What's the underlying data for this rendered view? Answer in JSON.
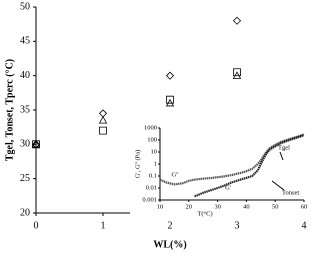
{
  "chart_data": [
    {
      "type": "scatter",
      "x_label": "WL(%)",
      "y_label": "Tgel, Tonset, Tperc (°C)",
      "x": [
        0,
        1,
        2,
        3
      ],
      "series": [
        {
          "name": "Tgel",
          "marker": "diamond",
          "color": "#000000",
          "values": [
            30,
            34.5,
            40,
            48
          ]
        },
        {
          "name": "Tonset",
          "marker": "triangle",
          "color": "#000000",
          "values": [
            30,
            33.5,
            36,
            40
          ]
        },
        {
          "name": "Tperc",
          "marker": "square",
          "color": "#000000",
          "values": [
            30,
            32,
            36.5,
            40.5
          ]
        }
      ],
      "xlim": [
        0,
        4
      ],
      "xticks": [
        0,
        1,
        2,
        3,
        4
      ],
      "ylim": [
        20,
        50
      ],
      "yticks": [
        20,
        25,
        30,
        35,
        40,
        45,
        50
      ]
    },
    {
      "type": "line",
      "x_label": "T(°C)",
      "y_label": "G', G'' (Pa)",
      "log_y": true,
      "x": [
        10,
        12,
        15,
        18,
        20,
        22,
        25,
        28,
        30,
        32,
        35,
        38,
        40,
        42,
        44,
        45,
        46,
        47,
        48,
        50,
        52,
        55,
        58,
        60
      ],
      "series": [
        {
          "name": "G''",
          "color": "#555555",
          "values": [
            0.05,
            0.03,
            0.02,
            0.025,
            0.04,
            0.05,
            0.06,
            0.07,
            0.08,
            0.09,
            0.12,
            0.18,
            0.25,
            0.4,
            1,
            2,
            5,
            10,
            20,
            40,
            70,
            120,
            200,
            300
          ]
        },
        {
          "name": "G'",
          "color": "#222222",
          "values": [
            null,
            null,
            null,
            null,
            null,
            0.002,
            0.004,
            0.007,
            0.01,
            0.015,
            0.03,
            0.05,
            0.07,
            0.1,
            0.3,
            1,
            3,
            8,
            15,
            30,
            55,
            100,
            170,
            250
          ]
        }
      ],
      "annotations": [
        "Tgel",
        "Tonset"
      ],
      "xlim": [
        10,
        60
      ],
      "xticks": [
        10,
        20,
        30,
        40,
        50,
        60
      ],
      "ylim": [
        0.001,
        1000
      ],
      "yticks": [
        0.001,
        0.01,
        0.1,
        1,
        10,
        100,
        1000
      ]
    }
  ]
}
